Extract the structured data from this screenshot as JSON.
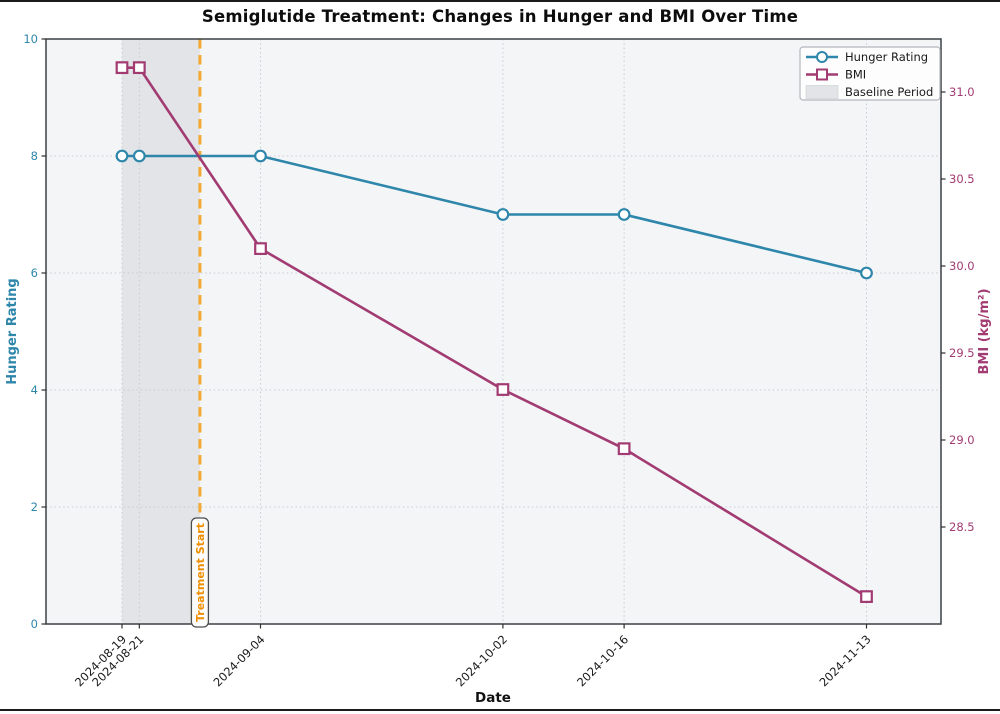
{
  "title": "Semiglutide Treatment: Changes in Hunger and BMI Over Time",
  "chart_data": {
    "type": "line",
    "title": "Semiglutide Treatment: Changes in Hunger and BMI Over Time",
    "xlabel": "Date",
    "categories": [
      "2024-08-19",
      "2024-08-21",
      "2024-09-04",
      "2024-10-02",
      "2024-10-16",
      "2024-11-13"
    ],
    "x_day_offsets": [
      0,
      2,
      16,
      44,
      58,
      86
    ],
    "series": [
      {
        "name": "Hunger Rating",
        "axis": "left",
        "marker": "circle",
        "color": "#2E86AB",
        "values": [
          8,
          8,
          8,
          7,
          7,
          6
        ]
      },
      {
        "name": "BMI",
        "axis": "right",
        "marker": "square",
        "color": "#A23B72",
        "values": [
          31.14,
          31.14,
          30.1,
          29.29,
          28.95,
          28.1
        ]
      }
    ],
    "left_axis": {
      "label": "Hunger Rating",
      "color": "#2E86AB",
      "ticks": [
        0,
        2,
        4,
        6,
        8,
        10
      ],
      "range": [
        0,
        10
      ]
    },
    "right_axis": {
      "label": "BMI (kg/m²)",
      "color": "#A23B72",
      "ticks": [
        28.5,
        29.0,
        29.5,
        30.0,
        30.5,
        31.0
      ],
      "range": [
        27.94,
        31.3
      ]
    },
    "annotations": {
      "treatment_line": {
        "label": "Treatment Start",
        "day_offset": 9,
        "color": "#F3A832",
        "text_color": "#EF8E00",
        "style": "dashed"
      },
      "baseline_region": {
        "label": "Baseline Period",
        "start_day": 0,
        "end_day": 9,
        "fill": "#E2E4E7"
      }
    },
    "legend": {
      "position": "upper right",
      "entries": [
        "Hunger Rating",
        "BMI",
        "Baseline Period"
      ]
    },
    "grid": true
  }
}
